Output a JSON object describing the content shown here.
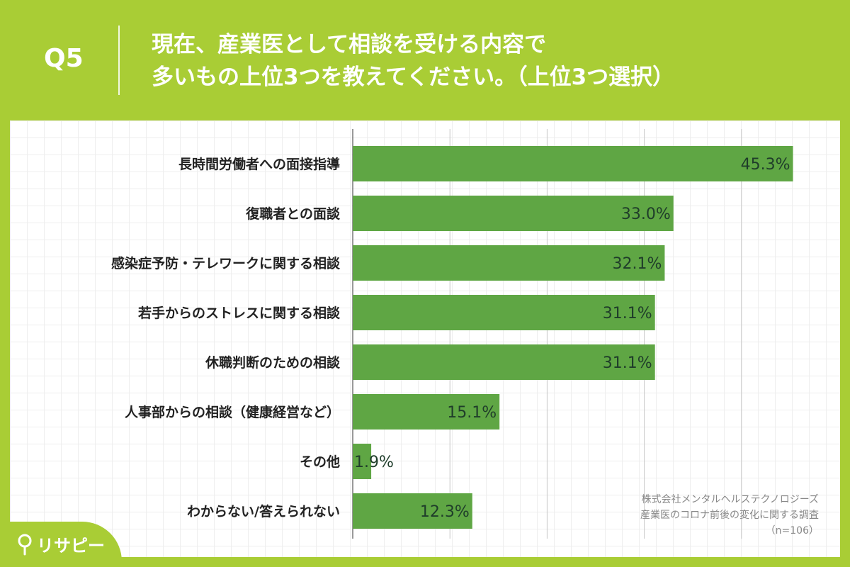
{
  "header": {
    "question_no": "Q5",
    "title_line1": "現在、産業医として相談を受ける内容で",
    "title_line2": "多いもの上位3つを教えてください。（上位3つ選択）"
  },
  "source": {
    "line1": "株式会社メンタルヘルステクノロジーズ",
    "line2": "産業医のコロナ前後の変化に関する調査",
    "line3": "（n=106）"
  },
  "logo": {
    "text": "リサピー"
  },
  "colors": {
    "background": "#a9cd35",
    "bar": "#5fa644",
    "bar_label": "#1f3d2a"
  },
  "chart_data": {
    "type": "bar",
    "orientation": "horizontal",
    "categories": [
      "長時間労働者への面接指導",
      "復職者との面談",
      "感染症予防・テレワークに関する相談",
      "若手からのストレスに関する相談",
      "休職判断のための相談",
      "人事部からの相談（健康経営など）",
      "その他",
      "わからない/答えられない"
    ],
    "values": [
      45.3,
      33.0,
      32.1,
      31.1,
      31.1,
      15.1,
      1.9,
      12.3
    ],
    "value_labels": [
      "45.3%",
      "33.0%",
      "32.1%",
      "31.1%",
      "31.1%",
      "15.1%",
      "1.9%",
      "12.3%"
    ],
    "xlim": [
      0,
      50
    ],
    "grid": true,
    "legend": "none"
  }
}
